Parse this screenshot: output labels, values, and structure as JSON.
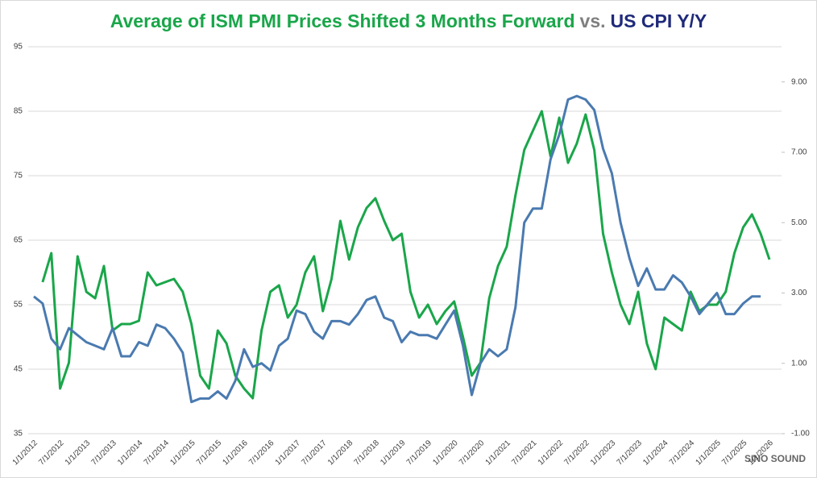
{
  "chart_data": {
    "type": "line",
    "title_parts": [
      {
        "text": "Average of ISM PMI Prices Shifted 3 Months Forward",
        "color": "#1aa64a"
      },
      {
        "text": "vs.",
        "color": "#7f7f7f"
      },
      {
        "text": "US CPI Y/Y",
        "color": "#1f2a7a"
      }
    ],
    "categories": [
      "1/1/2012",
      null,
      null,
      "7/1/2012",
      null,
      null,
      "1/1/2013",
      null,
      null,
      "7/1/2013",
      null,
      null,
      "1/1/2014",
      null,
      null,
      "7/1/2014",
      null,
      null,
      "1/1/2015",
      null,
      null,
      "7/1/2015",
      null,
      null,
      "1/1/2016",
      null,
      null,
      "7/1/2016",
      null,
      null,
      "1/1/2017",
      null,
      null,
      "7/1/2017",
      null,
      null,
      "1/1/2018",
      null,
      null,
      "7/1/2018",
      null,
      null,
      "1/1/2019",
      null,
      null,
      "7/1/2019",
      null,
      null,
      "1/1/2020",
      null,
      null,
      "7/1/2020",
      null,
      null,
      "1/1/2021",
      null,
      null,
      "7/1/2021",
      null,
      null,
      "1/1/2022",
      null,
      null,
      "7/1/2022",
      null,
      null,
      "1/1/2023",
      null,
      null,
      "7/1/2023",
      null,
      null,
      "1/1/2024",
      null,
      null,
      "7/1/2024",
      null,
      null,
      "1/1/2025",
      null,
      null,
      "7/1/2025",
      null,
      null,
      "1/1/2026"
    ],
    "series": [
      {
        "color": "#1aa64a",
        "axis": "y",
        "values": [
          null,
          58.5,
          63,
          42,
          46,
          62.5,
          57,
          56,
          61,
          51,
          52,
          52,
          52.5,
          60,
          58,
          58.5,
          59,
          57,
          52,
          44,
          42,
          51,
          49,
          44,
          42,
          40.5,
          51,
          57,
          58,
          53,
          55,
          60,
          62.5,
          54,
          59,
          68,
          62,
          67,
          70,
          71.5,
          68,
          65,
          66,
          57,
          53,
          55,
          52,
          54,
          55.5,
          50,
          44,
          46,
          56,
          61,
          64,
          72,
          79,
          82,
          85,
          78,
          84,
          77,
          80,
          84.5,
          79,
          66,
          60,
          55,
          52,
          57,
          49,
          45,
          53,
          52,
          51,
          57,
          54,
          55,
          55,
          57,
          63,
          67,
          69,
          66,
          62
        ]
      },
      {
        "color": "#4a7ab0",
        "axis": "y2",
        "values": [
          2.9,
          2.7,
          1.7,
          1.4,
          2.0,
          1.8,
          1.6,
          1.5,
          1.4,
          2.0,
          1.2,
          1.2,
          1.6,
          1.5,
          2.1,
          2.0,
          1.7,
          1.3,
          -0.1,
          0.0,
          0.0,
          0.2,
          0.0,
          0.5,
          1.4,
          0.9,
          1.0,
          0.8,
          1.5,
          1.7,
          2.5,
          2.4,
          1.9,
          1.7,
          2.2,
          2.2,
          2.1,
          2.4,
          2.8,
          2.9,
          2.3,
          2.2,
          1.6,
          1.9,
          1.8,
          1.8,
          1.7,
          2.1,
          2.5,
          1.5,
          0.1,
          1.0,
          1.4,
          1.2,
          1.4,
          2.6,
          5.0,
          5.4,
          5.4,
          6.8,
          7.5,
          8.5,
          8.6,
          8.5,
          8.2,
          7.1,
          6.4,
          5.0,
          4.0,
          3.2,
          3.7,
          3.1,
          3.1,
          3.5,
          3.3,
          2.9,
          2.4,
          2.7,
          3.0,
          2.4,
          2.4,
          2.7,
          2.9,
          2.9,
          null
        ]
      }
    ],
    "ylim": [
      35,
      95
    ],
    "yticks": [
      35,
      45,
      55,
      65,
      75,
      85,
      95
    ],
    "y2lim": [
      -1,
      10
    ],
    "y2ticks": [
      {
        "value": -1,
        "label": "-1.00"
      },
      {
        "value": 1,
        "label": "1.00"
      },
      {
        "value": 3,
        "label": "3.00"
      },
      {
        "value": 5,
        "label": "5.00"
      },
      {
        "value": 7,
        "label": "7.00"
      },
      {
        "value": 9,
        "label": "9.00"
      }
    ],
    "grid": true,
    "watermark": "SINO SOUND"
  }
}
